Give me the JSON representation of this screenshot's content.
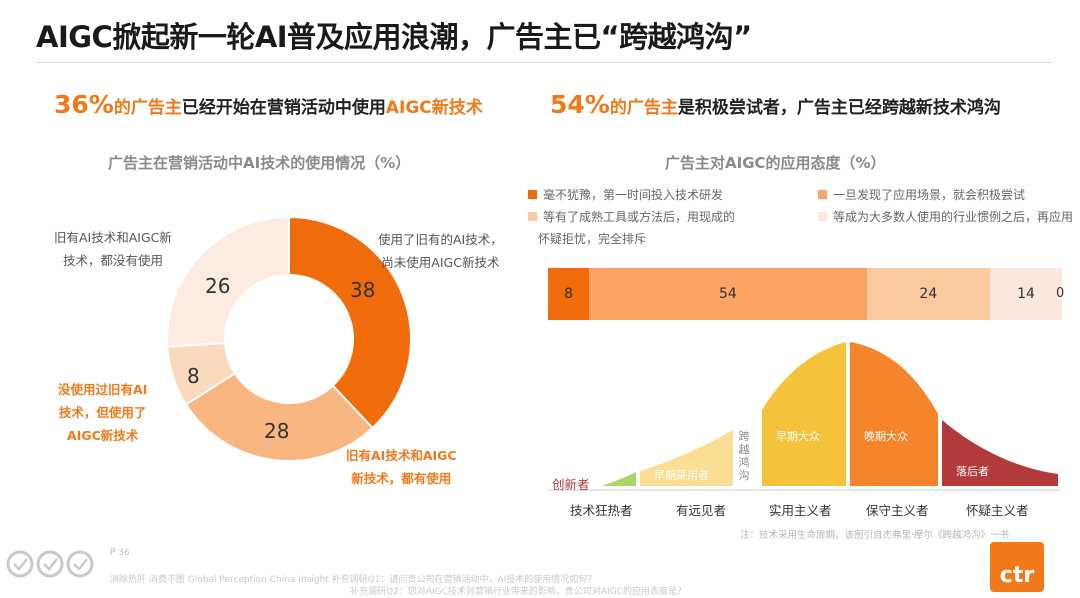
{
  "title": "AIGC掀起新一轮AI普及应用浪潮，广告主已“跨越鸿沟”",
  "headline_left": {
    "pct": "36%",
    "subject": "的广告主",
    "rest": "已经开始在营销活动中使用",
    "accent": "AIGC新技术"
  },
  "headline_right": {
    "pct": "54%",
    "subject": "的广告主",
    "rest": "是积极尝试者，广告主已经跨越新技术鸿沟"
  },
  "colors": {
    "accent": "#f07a1a",
    "dark_orange": "#f06c0a",
    "orange": "#fba466",
    "peach": "#fbd1ae",
    "light": "#fbe8dc",
    "red": "#b23a3a",
    "green": "#a9d669",
    "yellow": "#f5c33b"
  },
  "chart_data": [
    {
      "type": "pie",
      "title": "广告主在营销活动中AI技术的使用情况（%）",
      "slices": [
        {
          "label": "使用了旧有的AI技术，尚未使用AIGC新技术",
          "lines": [
            "使用了旧有的AI技术，",
            "尚未使用AIGC新技术"
          ],
          "value": 38,
          "color": "#f06c0a"
        },
        {
          "label": "旧有AI技术和AIGC新技术，都有使用",
          "lines": [
            "旧有AI技术和AIGC",
            "新技术，都有使用"
          ],
          "value": 28,
          "color": "#f9b680",
          "highlight": true
        },
        {
          "label": "没使用过旧有AI技术，但使用了AIGC新技术",
          "lines": [
            "没使用过旧有AI",
            "技术，但使用了",
            "AIGC新技术"
          ],
          "value": 8,
          "color": "#fbd9bd",
          "highlight": true
        },
        {
          "label": "旧有AI技术和AIGC新技术，都没有使用",
          "lines": [
            "旧有AI技术和AIGC新",
            "技术，都没有使用"
          ],
          "value": 26,
          "color": "#fcebe0"
        }
      ]
    },
    {
      "type": "bar",
      "title": "广告主对AIGC的应用态度（%）",
      "orientation": "horizontal-stacked",
      "series": [
        {
          "name": "毫不犹豫，第一时间投入技术研发",
          "value": 8,
          "color": "#f06c0a"
        },
        {
          "name": "一旦发现了应用场景，就会积极尝试",
          "value": 54,
          "color": "#fba466"
        },
        {
          "name": "等有了成熟工具或方法后，用现成的",
          "name_cont": "",
          "value": 24,
          "color": "#fbc9a0"
        },
        {
          "name": "等成为大多数人使用的行业惯例之后，再应用",
          "value": 14,
          "color": "#fbe8dc"
        },
        {
          "name": "怀疑拒忧，完全排斥",
          "value": 0,
          "color": "#fdf3ec"
        }
      ]
    }
  ],
  "legend_rows": [
    [
      "毫不犹豫，第一时间投入技术研发",
      "一旦发现了应用场景，就会积极尝试"
    ],
    [
      "等有了成熟工具或方法后，用现成的",
      "等成为大多数人使用的行业惯例之后，再应用"
    ]
  ],
  "legend_cont": "怀疑拒忧，完全排斥",
  "adoption_curve": {
    "stages": [
      "创新者",
      "早期采用者",
      "早期大众",
      "晚期大众",
      "落后者"
    ],
    "chasm_label": "跨越鸿沟",
    "categories": [
      "技术狂热者",
      "有远见者",
      "实用主义者",
      "保守主义者",
      "怀疑主义者"
    ]
  },
  "note": "注：技术采用生命周期，该图引自杰弗里·摩尔《跨越鸿沟》一书",
  "page": "P 36",
  "footer_lines": [
    "消除热肝 消费不图 Global Perception China Insight 补充调研Q1：请问贵公司在营销活动中，AI技术的使用情况如何？",
    "补充调研Q2：您对AIGC技术对营销行业带来的影响，贵公司对AIGC的应用态度是？"
  ],
  "logo_text": "ctr"
}
